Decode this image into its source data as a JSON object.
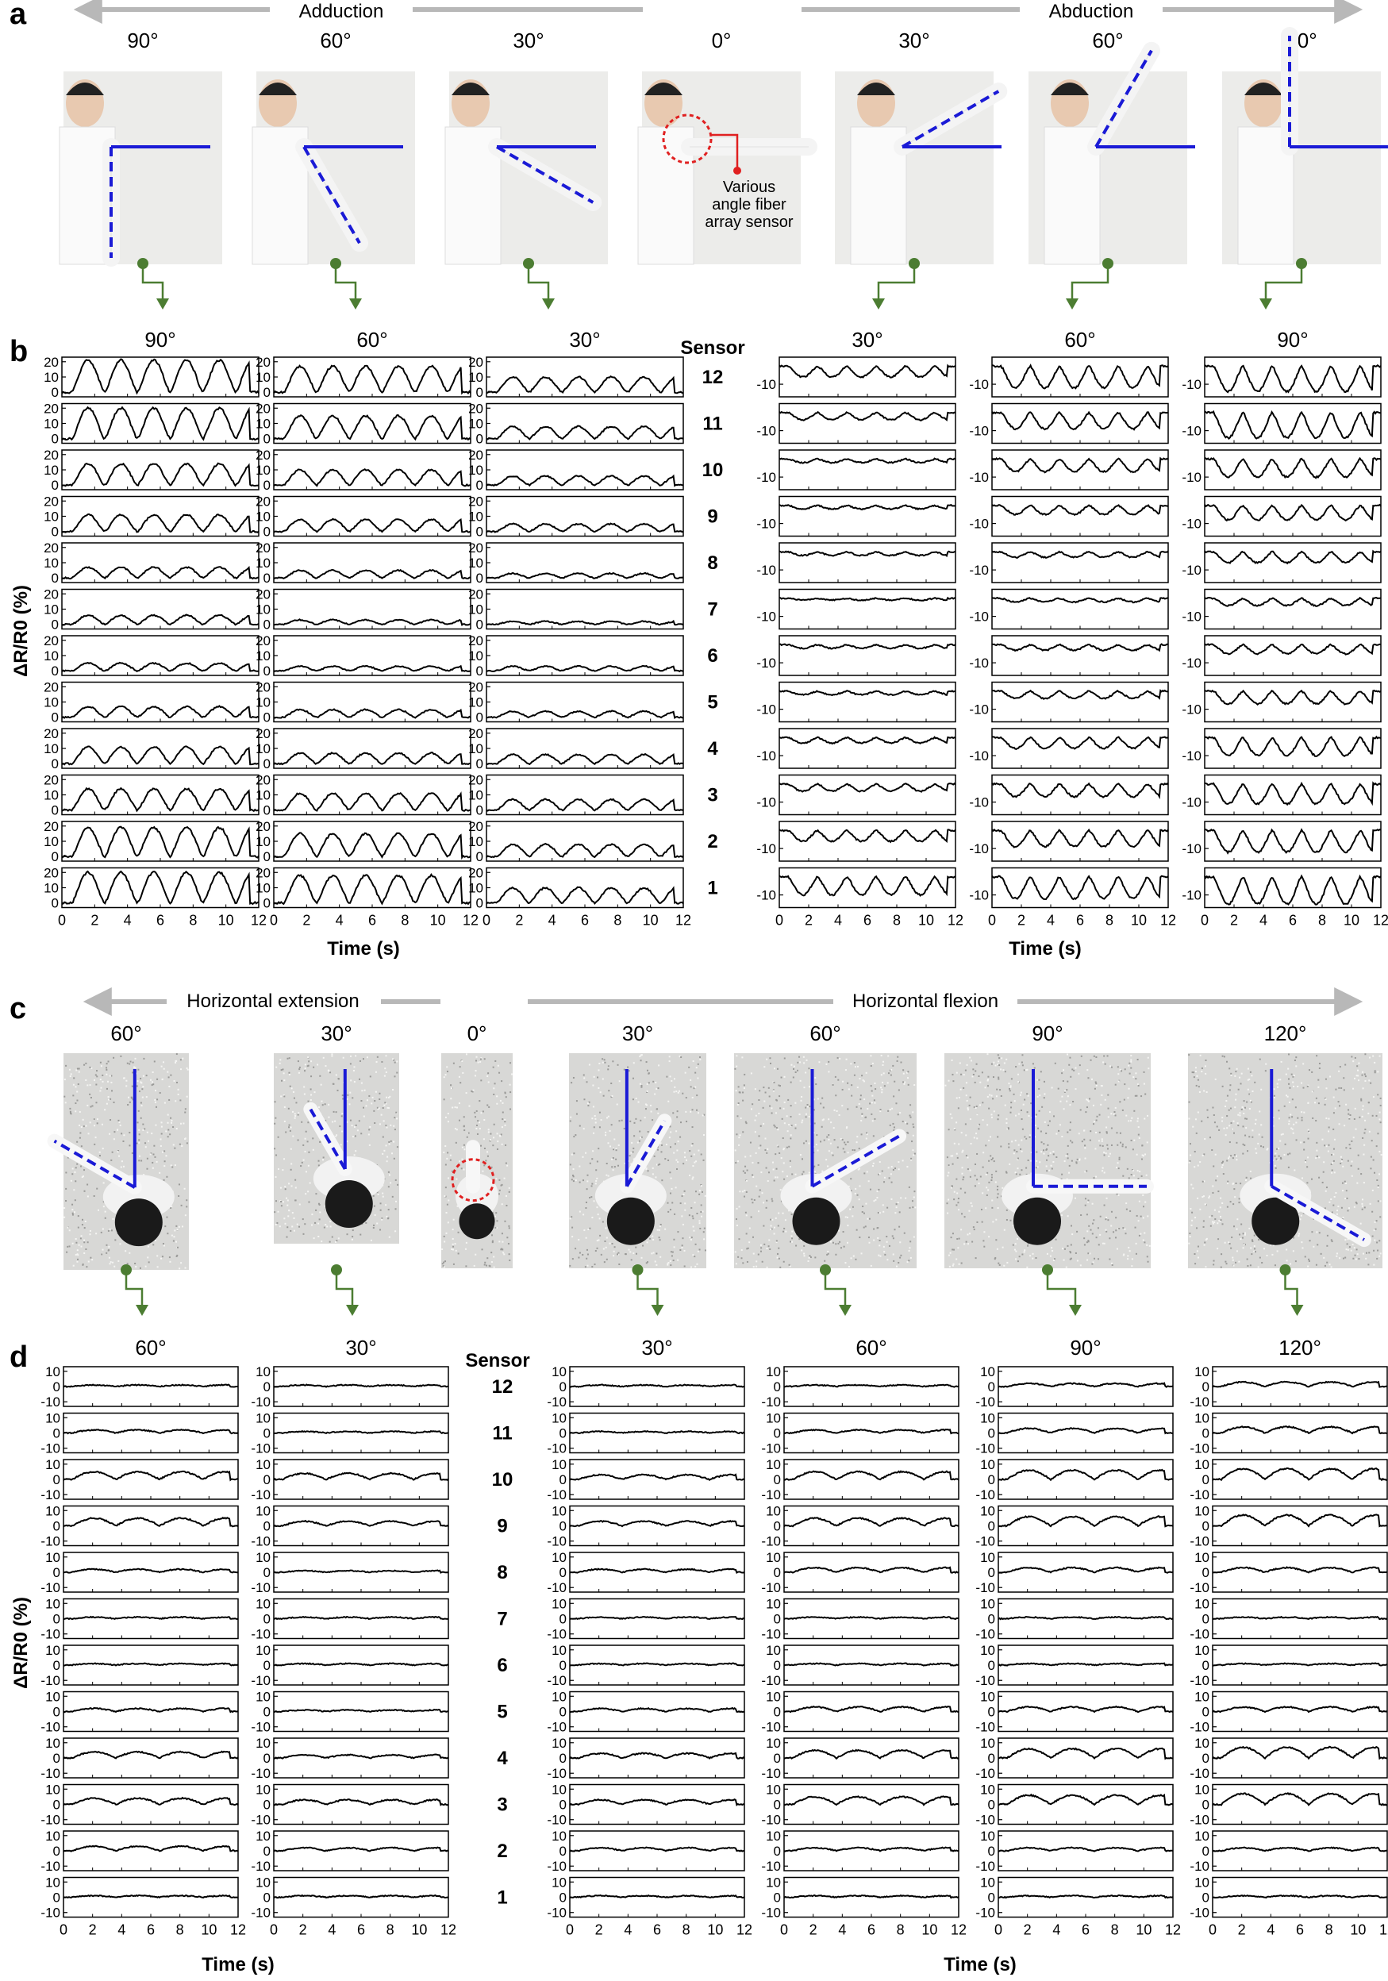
{
  "panel_labels": {
    "a": "a",
    "b": "b",
    "c": "c",
    "d": "d"
  },
  "panel_a": {
    "left_arrow_label": "Adduction",
    "right_arrow_label": "Abduction",
    "angles": [
      "90°",
      "60°",
      "30°",
      "0°",
      "30°",
      "60°",
      "90°"
    ],
    "sensor_callout": [
      "Various",
      "angle fiber",
      "array sensor"
    ],
    "line_color": "#1a1ad6",
    "photo_background": "#ececea"
  },
  "panel_c": {
    "left_arrow_label": "Horizontal extension",
    "right_arrow_label": "Horizontal flexion",
    "angles": [
      "60°",
      "30°",
      "0°",
      "30°",
      "60°",
      "90°",
      "120°"
    ],
    "photo_background": "#d8d8d6"
  },
  "connector_color": "#4c7d32",
  "grid_shared": {
    "sensor_header": "Sensor",
    "sensor_labels": [
      "12",
      "11",
      "10",
      "9",
      "8",
      "7",
      "6",
      "5",
      "4",
      "3",
      "2",
      "1"
    ],
    "y_axis_label": "ΔR/R0 (%)",
    "x_axis_label": "Time (s)",
    "x_ticks": [
      "0",
      "2",
      "4",
      "6",
      "8",
      "10",
      "12"
    ]
  },
  "chart_data": [
    {
      "type": "line",
      "panel": "b-adduction",
      "column_titles": [
        "90°",
        "60°",
        "30°"
      ],
      "y_ticks": [
        "20",
        "10",
        "0"
      ],
      "ylim": [
        -3,
        23
      ],
      "xlim": [
        0,
        12
      ],
      "period_s": 2.0,
      "polarity": "positive",
      "amplitude_percent_by_sensor_12_to_1": [
        [
          21,
          17,
          10
        ],
        [
          20,
          15,
          8
        ],
        [
          14,
          10,
          6
        ],
        [
          11,
          8,
          5
        ],
        [
          7,
          5,
          3
        ],
        [
          6,
          3,
          2
        ],
        [
          5,
          3,
          3
        ],
        [
          7,
          5,
          4
        ],
        [
          11,
          7,
          6
        ],
        [
          14,
          11,
          7
        ],
        [
          19,
          15,
          8
        ],
        [
          20,
          18,
          10
        ]
      ]
    },
    {
      "type": "line",
      "panel": "b-abduction",
      "column_titles": [
        "30°",
        "60°",
        "90°"
      ],
      "y_ticks": [
        "-10"
      ],
      "ylim": [
        -17,
        5
      ],
      "xlim": [
        0,
        12
      ],
      "period_s": 2.0,
      "polarity": "negative",
      "amplitude_percent_by_sensor_12_to_1": [
        [
          6,
          12,
          14
        ],
        [
          4,
          9,
          14
        ],
        [
          2,
          7,
          10
        ],
        [
          2,
          5,
          8
        ],
        [
          2,
          3,
          6
        ],
        [
          1,
          2,
          4
        ],
        [
          2,
          3,
          5
        ],
        [
          2,
          4,
          7
        ],
        [
          3,
          6,
          10
        ],
        [
          4,
          7,
          11
        ],
        [
          6,
          9,
          12
        ],
        [
          10,
          12,
          15
        ]
      ]
    },
    {
      "type": "line",
      "panel": "d-extension",
      "column_titles": [
        "60°",
        "30°"
      ],
      "y_ticks": [
        "10",
        "0",
        "-10"
      ],
      "ylim": [
        -13,
        13
      ],
      "xlim": [
        0,
        12
      ],
      "period_s": 3.0,
      "polarity": "positive",
      "amplitude_percent_by_sensor_12_to_1": [
        [
          1,
          1
        ],
        [
          2,
          1
        ],
        [
          5,
          4
        ],
        [
          5,
          3
        ],
        [
          2,
          1
        ],
        [
          1,
          1
        ],
        [
          1,
          1
        ],
        [
          2,
          1
        ],
        [
          4,
          2
        ],
        [
          4,
          3
        ],
        [
          3,
          2
        ],
        [
          1,
          1
        ]
      ]
    },
    {
      "type": "line",
      "panel": "d-flexion",
      "column_titles": [
        "30°",
        "60°",
        "90°",
        "120°"
      ],
      "y_ticks": [
        "10",
        "0",
        "-10"
      ],
      "ylim": [
        -13,
        13
      ],
      "xlim": [
        0,
        12
      ],
      "period_s": 3.0,
      "polarity": "positive",
      "amplitude_percent_by_sensor_12_to_1": [
        [
          1,
          1,
          2,
          3
        ],
        [
          1,
          2,
          3,
          4
        ],
        [
          3,
          5,
          6,
          7
        ],
        [
          3,
          5,
          6,
          7
        ],
        [
          2,
          3,
          3,
          3
        ],
        [
          1,
          1,
          1,
          1
        ],
        [
          1,
          1,
          1,
          1
        ],
        [
          2,
          3,
          3,
          3
        ],
        [
          3,
          5,
          6,
          7
        ],
        [
          3,
          5,
          6,
          7
        ],
        [
          2,
          2,
          2,
          2
        ],
        [
          1,
          1,
          1,
          1
        ]
      ]
    }
  ]
}
